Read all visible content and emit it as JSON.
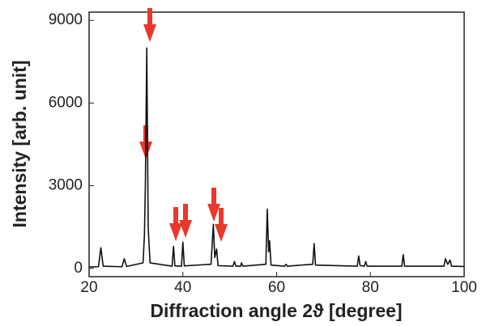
{
  "chart_data": {
    "type": "line",
    "xlabel": "Diffraction angle 2ϑ [degree]",
    "ylabel": "Intensity [arb. unit]",
    "x": [
      20,
      22,
      22.5,
      23,
      27,
      27.5,
      28,
      31.5,
      31.8,
      32,
      32.3,
      32.6,
      33,
      37.7,
      38,
      38.3,
      39.7,
      40,
      40.3,
      46,
      46.5,
      46.8,
      47.2,
      47.5,
      50.7,
      51,
      51.3,
      52.3,
      52.5,
      52.8,
      57.7,
      58,
      58.3,
      58.5,
      58.8,
      61.7,
      62,
      62.3,
      67.7,
      68,
      68.3,
      77.2,
      77.5,
      77.8,
      78.7,
      79,
      79.3,
      86.7,
      87,
      87.3,
      95.7,
      96,
      96.5,
      97,
      97.3,
      100
    ],
    "series": [
      {
        "color": "#111111",
        "values": [
          50,
          60,
          750,
          80,
          60,
          350,
          70,
          200,
          1200,
          3000,
          8000,
          1500,
          200,
          80,
          800,
          90,
          80,
          950,
          90,
          150,
          1600,
          400,
          700,
          100,
          80,
          250,
          80,
          80,
          200,
          80,
          150,
          2150,
          600,
          1000,
          120,
          80,
          150,
          80,
          150,
          900,
          120,
          80,
          450,
          100,
          80,
          250,
          80,
          80,
          500,
          80,
          80,
          350,
          150,
          300,
          80,
          70
        ]
      }
    ],
    "xlim": [
      20,
      100
    ],
    "xticks": [
      20,
      40,
      60,
      80,
      100
    ],
    "ylim": [
      -300,
      9300
    ],
    "yticks": [
      0,
      3000,
      6000,
      9000
    ]
  }
}
